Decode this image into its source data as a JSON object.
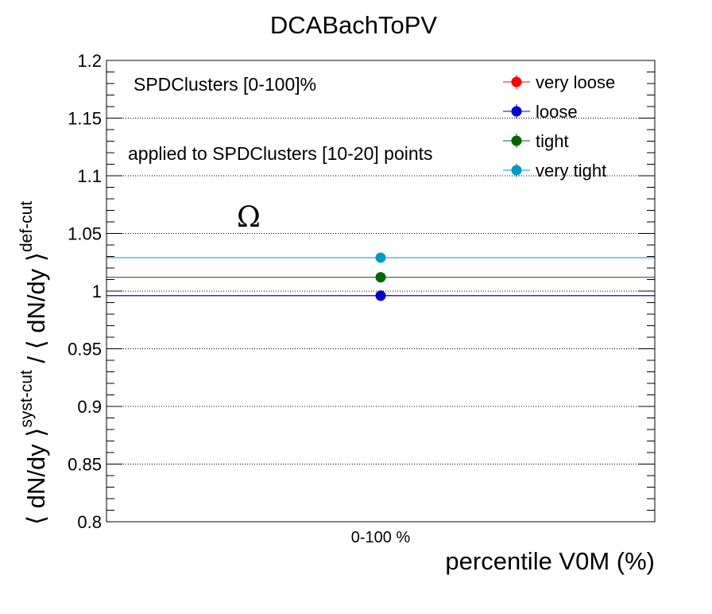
{
  "chart_data": {
    "type": "scatter",
    "title": "DCABachToPV",
    "xlabel": "percentile V0M (%)",
    "ylabel": "⟨ dN/dy ⟩^{syst-cut} / ⟨ dN/dy ⟩^{def-cut}",
    "ylabel_parts": {
      "base": "⟨ dN/dy ⟩",
      "sup_num": "syst-cut",
      "sep": " / ",
      "base2": "⟨ dN/dy ⟩",
      "sup_den": "def-cut"
    },
    "categories": [
      "0-100 %"
    ],
    "ylim": [
      0.8,
      1.2
    ],
    "yticks": [
      0.8,
      0.85,
      0.9,
      0.95,
      1,
      1.05,
      1.1,
      1.15,
      1.2
    ],
    "ytick_labels": [
      "0.8",
      "0.85",
      "0.9",
      "0.95",
      "1",
      "1.05",
      "1.1",
      "1.15",
      "1.2"
    ],
    "grid": "y-dotted",
    "legend_position": "top-right",
    "annotations": [
      "SPDClusters [0-100]%",
      "applied to SPDClusters [10-20] points",
      "Ω"
    ],
    "series": [
      {
        "name": "very loose",
        "color": "#ff0000",
        "values": [
          0.996
        ],
        "error": [
          0.004
        ]
      },
      {
        "name": "loose",
        "color": "#0000cc",
        "values": [
          0.996
        ],
        "error": [
          0.004
        ]
      },
      {
        "name": "tight",
        "color": "#006600",
        "values": [
          1.012
        ],
        "error": [
          0.004
        ]
      },
      {
        "name": "very tight",
        "color": "#0099cc",
        "values": [
          1.029
        ],
        "error": [
          0.004
        ]
      }
    ]
  }
}
